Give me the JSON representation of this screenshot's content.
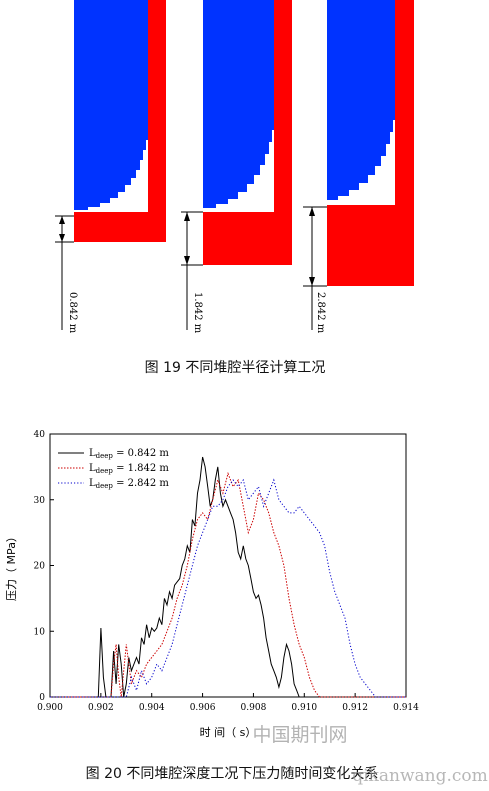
{
  "figure19": {
    "caption": "图 19  不同堆腔半径计算工况",
    "panels": [
      {
        "depth_label": "0.842 m"
      },
      {
        "depth_label": "1.842 m"
      },
      {
        "depth_label": "2.842 m"
      }
    ],
    "colors": {
      "fluid": "#0033ff",
      "solid": "#ff0000",
      "interface": "#c8a000"
    }
  },
  "figure20": {
    "caption": "图 20  不同堆腔深度工况下压力随时间变化关系",
    "chart_data": {
      "type": "line",
      "xlabel": "时 间（ s）",
      "ylabel": "压力（ MPa）",
      "xlim": [
        0.9,
        0.914
      ],
      "ylim": [
        0,
        40
      ],
      "x_ticks": [
        "0.900",
        "0.902",
        "0.904",
        "0.906",
        "0.908",
        "0.910",
        "0.912",
        "0.914"
      ],
      "y_ticks": [
        "0",
        "10",
        "20",
        "30",
        "40"
      ],
      "legend_position": "top-left",
      "series": [
        {
          "name": "L",
          "subscript": "deep",
          "value_label": "= 0.842 m",
          "color": "#000000",
          "style": "solid",
          "points": [
            [
              0.9,
              0
            ],
            [
              0.9019,
              0
            ],
            [
              0.902,
              10.5
            ],
            [
              0.9021,
              3
            ],
            [
              0.9022,
              0
            ],
            [
              0.9024,
              0
            ],
            [
              0.9025,
              7
            ],
            [
              0.9026,
              2
            ],
            [
              0.9027,
              8
            ],
            [
              0.9028,
              5
            ],
            [
              0.9029,
              0
            ],
            [
              0.903,
              2
            ],
            [
              0.9031,
              6
            ],
            [
              0.9032,
              4
            ],
            [
              0.9034,
              6
            ],
            [
              0.9035,
              5
            ],
            [
              0.9036,
              9
            ],
            [
              0.9037,
              8
            ],
            [
              0.9038,
              11
            ],
            [
              0.9039,
              9
            ],
            [
              0.904,
              10.5
            ],
            [
              0.9041,
              10
            ],
            [
              0.9042,
              10.5
            ],
            [
              0.9043,
              12
            ],
            [
              0.9044,
              11
            ],
            [
              0.9045,
              15
            ],
            [
              0.9046,
              14
            ],
            [
              0.9047,
              16
            ],
            [
              0.9048,
              15
            ],
            [
              0.9049,
              17
            ],
            [
              0.905,
              17.5
            ],
            [
              0.9051,
              18
            ],
            [
              0.9052,
              20
            ],
            [
              0.9053,
              21
            ],
            [
              0.9054,
              23
            ],
            [
              0.9055,
              22
            ],
            [
              0.9056,
              27
            ],
            [
              0.9057,
              26
            ],
            [
              0.9058,
              31
            ],
            [
              0.9059,
              33
            ],
            [
              0.906,
              36.5
            ],
            [
              0.9061,
              35
            ],
            [
              0.9062,
              32
            ],
            [
              0.9063,
              29
            ],
            [
              0.9064,
              30
            ],
            [
              0.9065,
              33
            ],
            [
              0.9066,
              35
            ],
            [
              0.9067,
              31
            ],
            [
              0.9068,
              29
            ],
            [
              0.9069,
              30
            ],
            [
              0.907,
              29
            ],
            [
              0.9071,
              28
            ],
            [
              0.9072,
              27
            ],
            [
              0.9073,
              25
            ],
            [
              0.9074,
              22
            ],
            [
              0.9075,
              21
            ],
            [
              0.9076,
              23
            ],
            [
              0.9077,
              21
            ],
            [
              0.9078,
              20
            ],
            [
              0.9079,
              18
            ],
            [
              0.908,
              16
            ],
            [
              0.9081,
              15
            ],
            [
              0.9082,
              15.5
            ],
            [
              0.9083,
              14
            ],
            [
              0.9084,
              12
            ],
            [
              0.9085,
              9
            ],
            [
              0.9086,
              7
            ],
            [
              0.9087,
              5
            ],
            [
              0.9088,
              4
            ],
            [
              0.9089,
              3
            ],
            [
              0.909,
              1.5
            ],
            [
              0.9091,
              3
            ],
            [
              0.9092,
              6
            ],
            [
              0.9093,
              8
            ],
            [
              0.9094,
              7
            ],
            [
              0.9095,
              5
            ],
            [
              0.9096,
              2
            ],
            [
              0.9097,
              1
            ],
            [
              0.9098,
              0
            ],
            [
              0.914,
              0
            ]
          ]
        },
        {
          "name": "L",
          "subscript": "deep",
          "value_label": "= 1.842 m",
          "color": "#cc0000",
          "style": "dotted-dense",
          "points": [
            [
              0.9,
              0
            ],
            [
              0.9024,
              0
            ],
            [
              0.9025,
              5
            ],
            [
              0.9026,
              8
            ],
            [
              0.9027,
              3
            ],
            [
              0.9028,
              0
            ],
            [
              0.903,
              8
            ],
            [
              0.9031,
              5
            ],
            [
              0.9032,
              2
            ],
            [
              0.9034,
              4
            ],
            [
              0.9036,
              3
            ],
            [
              0.9038,
              5
            ],
            [
              0.904,
              6
            ],
            [
              0.9042,
              7
            ],
            [
              0.9044,
              8
            ],
            [
              0.9046,
              10
            ],
            [
              0.9048,
              12
            ],
            [
              0.905,
              15
            ],
            [
              0.9052,
              17
            ],
            [
              0.9054,
              20
            ],
            [
              0.9056,
              24
            ],
            [
              0.9058,
              27
            ],
            [
              0.906,
              28
            ],
            [
              0.9062,
              27
            ],
            [
              0.9064,
              30
            ],
            [
              0.9066,
              33
            ],
            [
              0.9068,
              31
            ],
            [
              0.907,
              34
            ],
            [
              0.9072,
              32
            ],
            [
              0.9074,
              33
            ],
            [
              0.9076,
              29
            ],
            [
              0.9078,
              25
            ],
            [
              0.908,
              27
            ],
            [
              0.9082,
              31
            ],
            [
              0.9084,
              30
            ],
            [
              0.9086,
              28
            ],
            [
              0.9088,
              25
            ],
            [
              0.909,
              23
            ],
            [
              0.9092,
              20
            ],
            [
              0.9094,
              15
            ],
            [
              0.9096,
              11
            ],
            [
              0.9098,
              8
            ],
            [
              0.91,
              6
            ],
            [
              0.9102,
              3
            ],
            [
              0.9104,
              1
            ],
            [
              0.9106,
              0
            ],
            [
              0.914,
              0
            ]
          ]
        },
        {
          "name": "L",
          "subscript": "deep",
          "value_label": "= 2.842 m",
          "color": "#0000cc",
          "style": "dotted",
          "points": [
            [
              0.9,
              0
            ],
            [
              0.903,
              0
            ],
            [
              0.9032,
              3
            ],
            [
              0.9034,
              1
            ],
            [
              0.9036,
              4
            ],
            [
              0.9038,
              2
            ],
            [
              0.904,
              3
            ],
            [
              0.9042,
              5
            ],
            [
              0.9044,
              4
            ],
            [
              0.9046,
              6
            ],
            [
              0.9048,
              8
            ],
            [
              0.905,
              11
            ],
            [
              0.9052,
              14
            ],
            [
              0.9054,
              17
            ],
            [
              0.9056,
              20
            ],
            [
              0.9058,
              23
            ],
            [
              0.906,
              25
            ],
            [
              0.9062,
              27
            ],
            [
              0.9064,
              29
            ],
            [
              0.9066,
              29
            ],
            [
              0.9068,
              30
            ],
            [
              0.907,
              32
            ],
            [
              0.9072,
              33
            ],
            [
              0.9074,
              32
            ],
            [
              0.9076,
              33
            ],
            [
              0.9078,
              30
            ],
            [
              0.908,
              31
            ],
            [
              0.9082,
              32
            ],
            [
              0.9084,
              29
            ],
            [
              0.9086,
              31
            ],
            [
              0.9088,
              33
            ],
            [
              0.909,
              30
            ],
            [
              0.9092,
              29
            ],
            [
              0.9094,
              28
            ],
            [
              0.9096,
              28
            ],
            [
              0.9098,
              29
            ],
            [
              0.91,
              28
            ],
            [
              0.9102,
              27
            ],
            [
              0.9104,
              26
            ],
            [
              0.9106,
              25
            ],
            [
              0.9108,
              23
            ],
            [
              0.911,
              19
            ],
            [
              0.9112,
              16
            ],
            [
              0.9114,
              14
            ],
            [
              0.9116,
              12
            ],
            [
              0.9118,
              8
            ],
            [
              0.912,
              5
            ],
            [
              0.9122,
              3
            ],
            [
              0.9124,
              2
            ],
            [
              0.9126,
              1
            ],
            [
              0.9128,
              0
            ],
            [
              0.914,
              0
            ]
          ]
        }
      ]
    }
  },
  "watermark": "中国期刊网  www.qikanwang.com"
}
